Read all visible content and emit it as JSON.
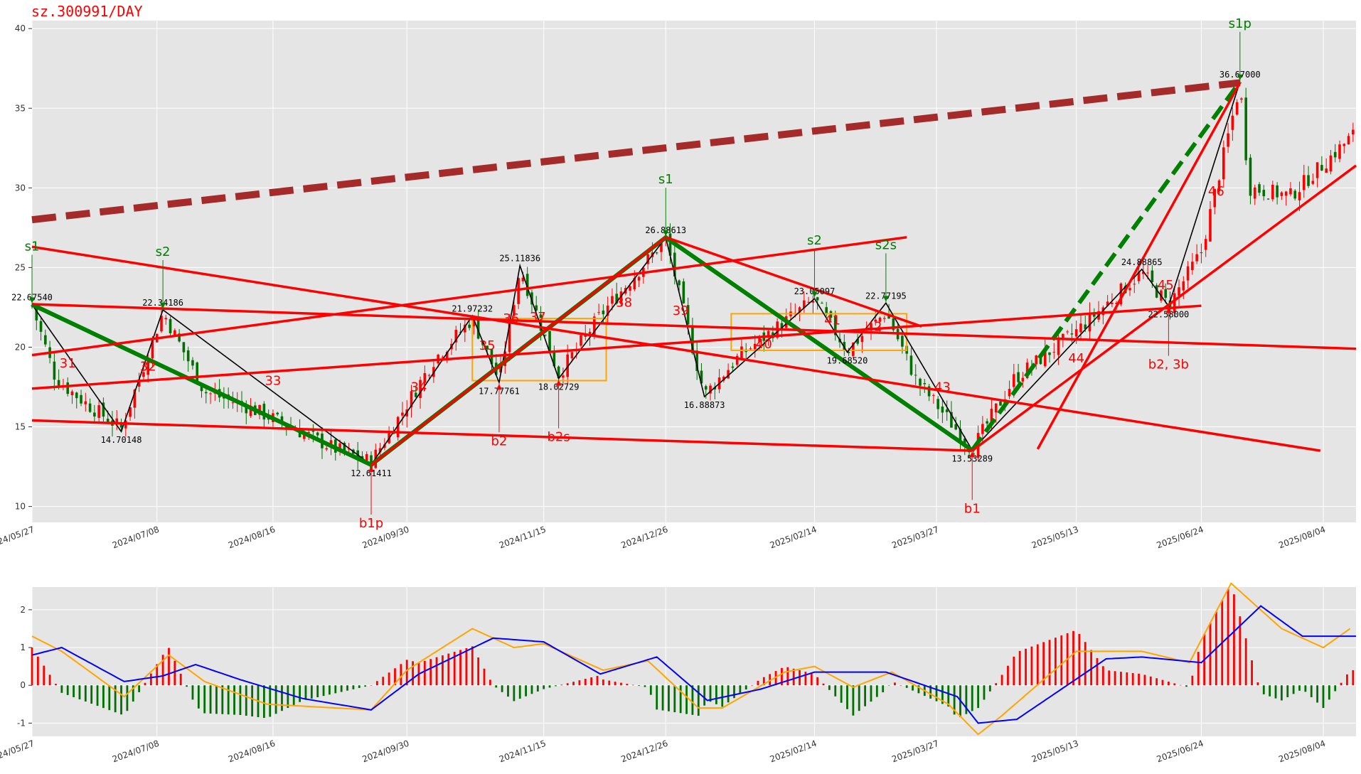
{
  "title": "sz.300991/DAY",
  "colors": {
    "up": "#ff0000",
    "down": "#007000",
    "grid": "#ffffff",
    "panel": "#e5e5e5",
    "bi": "#000000",
    "line_red": "#ff0000",
    "line_green": "#008000",
    "dash": "#a52a2a",
    "zone": "#ffa500",
    "dif": "#ffa500",
    "dea": "#0000ff"
  },
  "chart_data": [
    {
      "type": "candlestick",
      "title": "sz.300991/DAY",
      "ylim": [
        9,
        40.5
      ],
      "yticks": [
        10,
        15,
        20,
        25,
        30,
        35,
        40
      ],
      "xlim": [
        "2024/05/27",
        "2025/08/15"
      ],
      "xticks": [
        "2024/05/27",
        "2024/07/08",
        "2024/08/16",
        "2024/09/30",
        "2024/11/15",
        "2024/12/26",
        "2025/02/14",
        "2025/03/27",
        "2025/05/13",
        "2025/06/24",
        "2025/08/04"
      ],
      "price_path": [
        [
          "2024/05/27",
          22.6
        ],
        [
          "2024/06/04",
          18.0
        ],
        [
          "2024/06/14",
          16.5
        ],
        [
          "2024/06/26",
          14.9
        ],
        [
          "2024/07/10",
          22.2
        ],
        [
          "2024/07/24",
          17.2
        ],
        [
          "2024/08/07",
          16.3
        ],
        [
          "2024/08/22",
          15.0
        ],
        [
          "2024/09/06",
          13.6
        ],
        [
          "2024/09/18",
          12.8
        ],
        [
          "2024/09/27",
          15.5
        ],
        [
          "2024/10/09",
          19.2
        ],
        [
          "2024/10/22",
          21.8
        ],
        [
          "2024/10/31",
          17.9
        ],
        [
          "2024/11/07",
          25.0
        ],
        [
          "2024/11/20",
          18.3
        ],
        [
          "2024/12/04",
          22.0
        ],
        [
          "2024/12/26",
          26.8
        ],
        [
          "2025/01/08",
          17.0
        ],
        [
          "2025/01/20",
          19.5
        ],
        [
          "2025/02/14",
          23.0
        ],
        [
          "2025/02/25",
          19.8
        ],
        [
          "2025/03/10",
          22.2
        ],
        [
          "2025/03/20",
          18.0
        ],
        [
          "2025/04/08",
          13.6
        ],
        [
          "2025/04/22",
          18.0
        ],
        [
          "2025/05/13",
          21.0
        ],
        [
          "2025/06/04",
          24.7
        ],
        [
          "2025/06/13",
          22.6
        ],
        [
          "2025/06/24",
          26.0
        ],
        [
          "2025/07/07",
          36.5
        ],
        [
          "2025/07/10",
          30.0
        ],
        [
          "2025/07/24",
          29.5
        ],
        [
          "2025/08/15",
          33.5
        ]
      ],
      "value_labels": [
        {
          "text": "22.67540",
          "x": "2024/05/27",
          "y": 22.6754
        },
        {
          "text": "14.70148",
          "x": "2024/06/26",
          "y": 14.70148
        },
        {
          "text": "22.34186",
          "x": "2024/07/10",
          "y": 22.34186
        },
        {
          "text": "12.61411",
          "x": "2024/09/18",
          "y": 12.61411
        },
        {
          "text": "21.97232",
          "x": "2024/10/22",
          "y": 21.97232
        },
        {
          "text": "17.77761",
          "x": "2024/10/31",
          "y": 17.77761
        },
        {
          "text": "25.11836",
          "x": "2024/11/07",
          "y": 25.11836
        },
        {
          "text": "18.02729",
          "x": "2024/11/20",
          "y": 18.02729
        },
        {
          "text": "26.88613",
          "x": "2024/12/26",
          "y": 26.88613
        },
        {
          "text": "16.88873",
          "x": "2025/01/08",
          "y": 16.88873
        },
        {
          "text": "23.05097",
          "x": "2025/02/14",
          "y": 23.05097
        },
        {
          "text": "19.68520",
          "x": "2025/02/25",
          "y": 19.6852
        },
        {
          "text": "22.77195",
          "x": "2025/03/10",
          "y": 22.77195
        },
        {
          "text": "13.53289",
          "x": "2025/04/08",
          "y": 13.53289
        },
        {
          "text": "24.88865",
          "x": "2025/06/04",
          "y": 24.88865
        },
        {
          "text": "22.58000",
          "x": "2025/06/13",
          "y": 22.58
        },
        {
          "text": "36.67000",
          "x": "2025/07/07",
          "y": 36.67
        }
      ],
      "signals": [
        {
          "text": "s1",
          "x": "2024/05/27",
          "y": 22.6754,
          "side": "top"
        },
        {
          "text": "s2",
          "x": "2024/07/10",
          "y": 22.34186,
          "side": "top"
        },
        {
          "text": "b1p",
          "x": "2024/09/18",
          "y": 12.61411,
          "side": "bottom"
        },
        {
          "text": "b2",
          "x": "2024/10/31",
          "y": 17.77761,
          "side": "bottom"
        },
        {
          "text": "b2s",
          "x": "2024/11/20",
          "y": 18.02729,
          "side": "bottom"
        },
        {
          "text": "s1",
          "x": "2024/12/26",
          "y": 26.88613,
          "side": "top"
        },
        {
          "text": "s2",
          "x": "2025/02/14",
          "y": 23.05097,
          "side": "top"
        },
        {
          "text": "s2s",
          "x": "2025/03/10",
          "y": 22.77195,
          "side": "top"
        },
        {
          "text": "b1",
          "x": "2025/04/08",
          "y": 13.53289,
          "side": "bottom"
        },
        {
          "text": "b2, 3b",
          "x": "2025/06/13",
          "y": 22.58,
          "side": "bottom"
        },
        {
          "text": "s1p",
          "x": "2025/07/07",
          "y": 36.67,
          "side": "top"
        }
      ],
      "segment_labels": [
        {
          "text": "31",
          "x": "2024/06/08",
          "y": 19.0
        },
        {
          "text": "32",
          "x": "2024/07/05",
          "y": 18.8
        },
        {
          "text": "33",
          "x": "2024/08/16",
          "y": 17.9
        },
        {
          "text": "34",
          "x": "2024/10/04",
          "y": 17.5
        },
        {
          "text": "35",
          "x": "2024/10/27",
          "y": 20.1
        },
        {
          "text": "36",
          "x": "2024/11/04",
          "y": 21.8
        },
        {
          "text": "37",
          "x": "2024/11/13",
          "y": 21.9
        },
        {
          "text": "38",
          "x": "2024/12/12",
          "y": 22.8
        },
        {
          "text": "39",
          "x": "2024/12/31",
          "y": 22.3
        },
        {
          "text": "40",
          "x": "2025/01/28",
          "y": 20.2
        },
        {
          "text": "41",
          "x": "2025/02/20",
          "y": 21.7
        },
        {
          "text": "42",
          "x": "2025/03/06",
          "y": 21.3
        },
        {
          "text": "43",
          "x": "2025/03/29",
          "y": 17.5
        },
        {
          "text": "44",
          "x": "2025/05/13",
          "y": 19.3
        },
        {
          "text": "45",
          "x": "2025/06/12",
          "y": 23.9
        },
        {
          "text": "46",
          "x": "2025/06/29",
          "y": 29.8
        }
      ]
    },
    {
      "type": "macd",
      "ylim": [
        -1.35,
        2.6
      ],
      "yticks": [
        -1,
        0,
        1,
        2
      ],
      "dif_path": [
        [
          "2024/05/27",
          1.3
        ],
        [
          "2024/06/06",
          0.9
        ],
        [
          "2024/06/20",
          0.1
        ],
        [
          "2024/06/27",
          -0.3
        ],
        [
          "2024/07/12",
          0.8
        ],
        [
          "2024/07/24",
          0.1
        ],
        [
          "2024/08/14",
          -0.5
        ],
        [
          "2024/09/18",
          -0.65
        ],
        [
          "2024/09/30",
          0.4
        ],
        [
          "2024/10/22",
          1.5
        ],
        [
          "2024/11/05",
          1.0
        ],
        [
          "2024/11/15",
          1.1
        ],
        [
          "2024/12/05",
          0.4
        ],
        [
          "2024/12/20",
          0.65
        ],
        [
          "2025/01/06",
          -0.6
        ],
        [
          "2025/01/14",
          -0.6
        ],
        [
          "2025/02/04",
          0.35
        ],
        [
          "2025/02/14",
          0.5
        ],
        [
          "2025/02/27",
          -0.05
        ],
        [
          "2025/03/12",
          0.35
        ],
        [
          "2025/03/31",
          -0.5
        ],
        [
          "2025/04/10",
          -1.3
        ],
        [
          "2025/04/18",
          -0.8
        ],
        [
          "2025/05/13",
          0.9
        ],
        [
          "2025/06/04",
          0.9
        ],
        [
          "2025/06/20",
          0.6
        ],
        [
          "2025/07/04",
          2.7
        ],
        [
          "2025/07/21",
          1.5
        ],
        [
          "2025/08/04",
          1.0
        ],
        [
          "2025/08/13",
          1.5
        ]
      ],
      "dea_path": [
        [
          "2024/05/27",
          0.8
        ],
        [
          "2024/06/06",
          1.0
        ],
        [
          "2024/06/27",
          0.1
        ],
        [
          "2024/07/10",
          0.25
        ],
        [
          "2024/07/21",
          0.55
        ],
        [
          "2024/08/05",
          0.15
        ],
        [
          "2024/08/26",
          -0.35
        ],
        [
          "2024/09/18",
          -0.65
        ],
        [
          "2024/10/04",
          0.3
        ],
        [
          "2024/10/29",
          1.25
        ],
        [
          "2024/11/15",
          1.15
        ],
        [
          "2024/12/04",
          0.3
        ],
        [
          "2024/12/23",
          0.75
        ],
        [
          "2025/01/09",
          -0.4
        ],
        [
          "2025/01/27",
          -0.1
        ],
        [
          "2025/02/14",
          0.35
        ],
        [
          "2025/03/10",
          0.35
        ],
        [
          "2025/04/03",
          -0.3
        ],
        [
          "2025/04/10",
          -1.0
        ],
        [
          "2025/04/23",
          -0.9
        ],
        [
          "2025/05/23",
          0.7
        ],
        [
          "2025/06/04",
          0.75
        ],
        [
          "2025/06/24",
          0.6
        ],
        [
          "2025/07/14",
          2.1
        ],
        [
          "2025/07/28",
          1.3
        ],
        [
          "2025/08/15",
          1.3
        ]
      ]
    }
  ]
}
